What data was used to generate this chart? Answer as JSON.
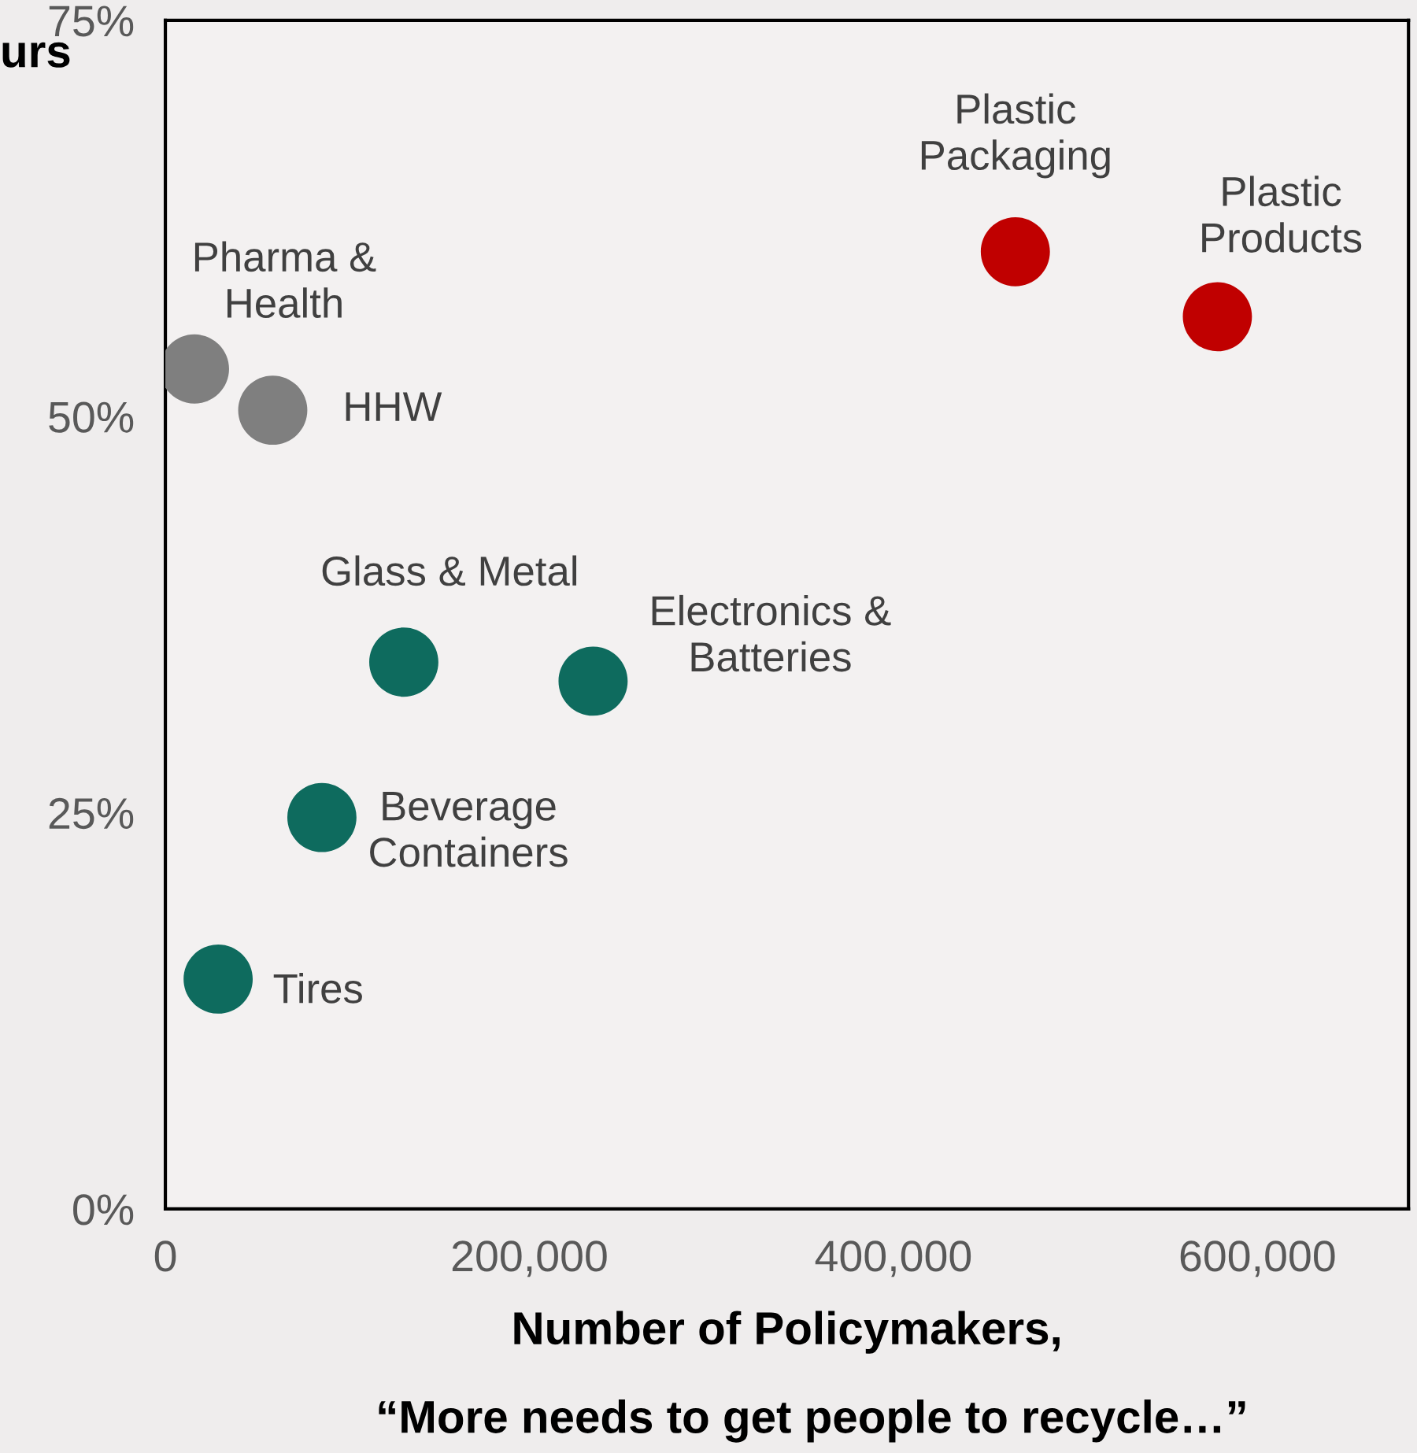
{
  "chart_data": {
    "type": "scatter",
    "xlabel": "Number of Policymakers,",
    "subtitle": "“More needs to get people to recycle…”",
    "ylabel": "urs",
    "x": [
      16000,
      59000,
      131000,
      235000,
      86000,
      29000,
      467000,
      578000
    ],
    "values": [
      53.0,
      50.4,
      34.5,
      33.3,
      24.7,
      14.5,
      60.4,
      56.3
    ],
    "colors": [
      "#7f7f7f",
      "#7f7f7f",
      "#0e6b5e",
      "#0e6b5e",
      "#0e6b5e",
      "#0e6b5e",
      "#c00000",
      "#c00000"
    ],
    "marker": "circle",
    "annotations": [
      {
        "text": "Pharma &\nHealth",
        "x": 16000,
        "y": 53.0
      },
      {
        "text": "HHW",
        "x": 59000,
        "y": 50.4
      },
      {
        "text": "Glass & Metal",
        "x": 131000,
        "y": 34.5
      },
      {
        "text": "Electronics &\nBatteries",
        "x": 235000,
        "y": 33.3
      },
      {
        "text": "Beverage\nContainers",
        "x": 86000,
        "y": 24.7
      },
      {
        "text": "Tires",
        "x": 29000,
        "y": 14.5
      },
      {
        "text": "Plastic\nPackaging",
        "x": 467000,
        "y": 60.4
      },
      {
        "text": "Plastic\nProducts",
        "x": 578000,
        "y": 56.3
      }
    ],
    "xlim": [
      0,
      683000
    ],
    "xticks": [
      0,
      {
        "value": 200000,
        "label": "200,000"
      },
      {
        "value": 400000,
        "label": "400,000"
      },
      {
        "value": 600000,
        "label": "600,000"
      }
    ],
    "ylim": [
      0,
      75
    ],
    "yticks": [
      {
        "value": 0,
        "label": "0%"
      },
      {
        "value": 25,
        "label": "25%"
      },
      {
        "value": 50,
        "label": "50%"
      },
      {
        "value": 75,
        "label": "75%"
      }
    ],
    "grid": false,
    "legend": false
  }
}
